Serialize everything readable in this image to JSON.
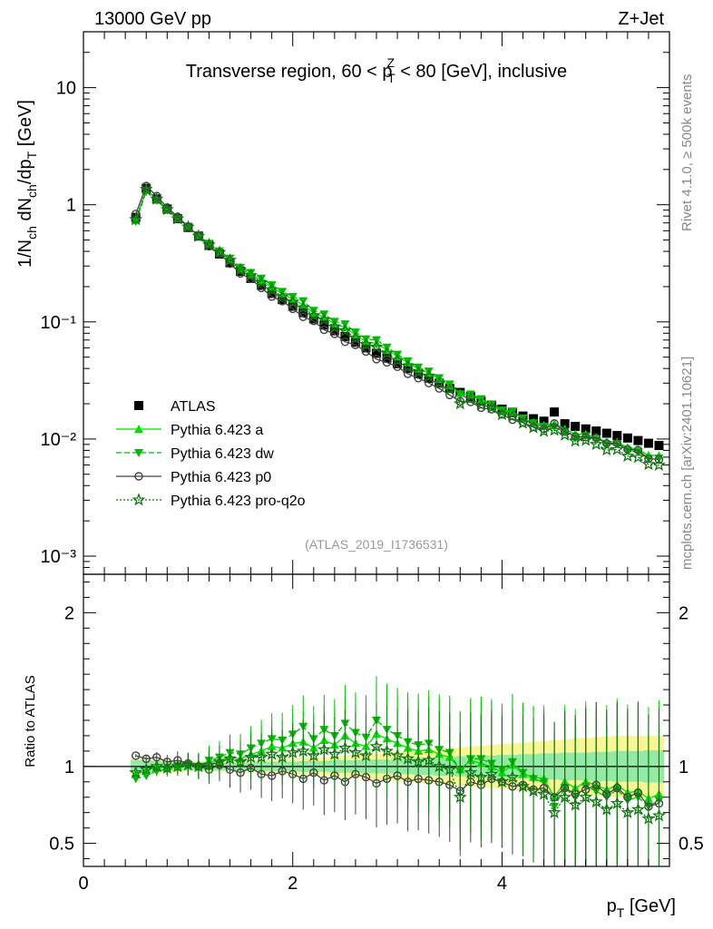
{
  "header": {
    "energy_label": "13000 GeV pp",
    "process_label": "Z+Jet"
  },
  "side_labels": {
    "rivet": "Rivet 4.1.0, ≥ 500k events",
    "source": "mcplots.cern.ch [arXiv:2401.10621]"
  },
  "chart_data": {
    "type": "scatter",
    "title_parts": {
      "pre": "Transverse region, 60 < p",
      "sub": "T",
      "sup": "Z",
      "post": " < 80 [GeV], inclusive"
    },
    "ylabel": "1/N_ch dN_ch/dp_T [GeV]",
    "ylabel_parts": {
      "a": "1/N",
      "a_sub": "ch",
      "b": " dN",
      "b_sub": "ch",
      "c": "/dp",
      "c_sub": "T",
      "d": " [GeV]"
    },
    "xlabel_parts": {
      "a": "p",
      "a_sub": "T",
      "b": " [GeV]"
    },
    "ratio_ylabel": "Ratio to ATLAS",
    "analysis_id": "(ATLAS_2019_I1736531)",
    "xlim": [
      0,
      5.6
    ],
    "ylim": [
      0.0007,
      30
    ],
    "ratio_ylim": [
      0.35,
      2.25
    ],
    "x_ticks": [
      "0",
      "2",
      "4"
    ],
    "y_ticks": [
      "10⁻³",
      "10⁻²",
      "10⁻¹",
      "1",
      "10"
    ],
    "ratio_ticks": [
      "0.5",
      "1",
      "2"
    ],
    "legend_position": "lower-left",
    "x": [
      0.5,
      0.6,
      0.7,
      0.8,
      0.9,
      1.0,
      1.1,
      1.2,
      1.3,
      1.4,
      1.5,
      1.6,
      1.7,
      1.8,
      1.9,
      2.0,
      2.1,
      2.2,
      2.3,
      2.4,
      2.5,
      2.6,
      2.7,
      2.8,
      2.9,
      3.0,
      3.1,
      3.2,
      3.3,
      3.4,
      3.5,
      3.6,
      3.7,
      3.8,
      3.9,
      4.0,
      4.1,
      4.2,
      4.3,
      4.4,
      4.5,
      4.6,
      4.7,
      4.8,
      4.9,
      5.0,
      5.1,
      5.2,
      5.3,
      5.4,
      5.5
    ],
    "data_values": [
      0.78,
      1.38,
      1.12,
      0.92,
      0.76,
      0.64,
      0.54,
      0.45,
      0.38,
      0.32,
      0.27,
      0.235,
      0.205,
      0.175,
      0.155,
      0.136,
      0.12,
      0.106,
      0.094,
      0.084,
      0.075,
      0.067,
      0.06,
      0.054,
      0.049,
      0.044,
      0.04,
      0.036,
      0.033,
      0.03,
      0.027,
      0.025,
      0.023,
      0.021,
      0.0195,
      0.018,
      0.0168,
      0.0157,
      0.0149,
      0.0142,
      0.017,
      0.0135,
      0.0128,
      0.0122,
      0.0117,
      0.0112,
      0.0107,
      0.0102,
      0.0097,
      0.0092,
      0.0088
    ],
    "band_inner_half": [
      0.04,
      0.04,
      0.035,
      0.03,
      0.03,
      0.025,
      0.025,
      0.025,
      0.025,
      0.025,
      0.025,
      0.025,
      0.03,
      0.03,
      0.03,
      0.03,
      0.035,
      0.035,
      0.035,
      0.04,
      0.04,
      0.04,
      0.045,
      0.045,
      0.045,
      0.05,
      0.05,
      0.055,
      0.055,
      0.06,
      0.06,
      0.065,
      0.065,
      0.07,
      0.07,
      0.075,
      0.075,
      0.08,
      0.08,
      0.085,
      0.085,
      0.09,
      0.09,
      0.09,
      0.095,
      0.095,
      0.1,
      0.1,
      0.1,
      0.105,
      0.105
    ],
    "band_outer_half": [
      0.05,
      0.05,
      0.045,
      0.04,
      0.04,
      0.035,
      0.035,
      0.035,
      0.035,
      0.035,
      0.04,
      0.04,
      0.045,
      0.045,
      0.05,
      0.05,
      0.055,
      0.06,
      0.06,
      0.065,
      0.07,
      0.075,
      0.08,
      0.085,
      0.09,
      0.095,
      0.1,
      0.105,
      0.11,
      0.115,
      0.12,
      0.125,
      0.13,
      0.135,
      0.14,
      0.145,
      0.15,
      0.155,
      0.16,
      0.165,
      0.17,
      0.175,
      0.18,
      0.185,
      0.19,
      0.195,
      0.2,
      0.2,
      0.2,
      0.2,
      0.2
    ],
    "series": [
      {
        "name": "ATLAS",
        "key": "atlas"
      },
      {
        "name": "Pythia 6.423 a",
        "key": "a",
        "ratio": [
          0.95,
          0.97,
          1.0,
          1.0,
          1.01,
          1.02,
          1.01,
          1.03,
          1.04,
          1.06,
          1.05,
          1.08,
          1.1,
          1.13,
          1.12,
          1.15,
          1.16,
          1.12,
          1.17,
          1.14,
          1.2,
          1.15,
          1.13,
          1.21,
          1.18,
          1.15,
          1.12,
          1.1,
          1.11,
          1.08,
          1.06,
          0.98,
          1.04,
          1.02,
          1.0,
          0.96,
          1.01,
          0.95,
          0.93,
          0.92,
          0.8,
          0.9,
          0.86,
          0.9,
          0.88,
          0.85,
          0.88,
          0.83,
          0.84,
          0.79,
          0.82
        ]
      },
      {
        "name": "Pythia 6.423 dw",
        "key": "dw",
        "ratio": [
          0.92,
          0.94,
          0.97,
          0.98,
          1.0,
          1.01,
          1.0,
          1.04,
          1.06,
          1.09,
          1.08,
          1.12,
          1.15,
          1.18,
          1.17,
          1.21,
          1.26,
          1.18,
          1.24,
          1.2,
          1.28,
          1.22,
          1.19,
          1.3,
          1.24,
          1.2,
          1.16,
          1.14,
          1.15,
          1.11,
          1.09,
          0.97,
          1.05,
          1.05,
          1.02,
          0.98,
          1.03,
          0.96,
          0.92,
          0.9,
          0.74,
          0.86,
          0.8,
          0.87,
          0.84,
          0.8,
          0.85,
          0.78,
          0.8,
          0.74,
          0.78
        ]
      },
      {
        "name": "Pythia 6.423 p0",
        "key": "p0",
        "ratio": [
          1.07,
          1.05,
          1.06,
          1.03,
          1.04,
          1.02,
          1.0,
          0.98,
          1.01,
          0.98,
          0.96,
          0.99,
          0.95,
          0.94,
          0.97,
          0.95,
          0.92,
          0.96,
          0.91,
          0.94,
          0.9,
          0.95,
          0.93,
          0.89,
          0.92,
          0.94,
          0.9,
          0.92,
          0.91,
          0.9,
          0.88,
          0.84,
          0.9,
          0.88,
          0.92,
          0.9,
          0.87,
          0.88,
          0.85,
          0.86,
          0.8,
          0.86,
          0.82,
          0.85,
          0.88,
          0.82,
          0.86,
          0.8,
          0.83,
          0.74,
          0.76
        ]
      },
      {
        "name": "Pythia 6.423 pro-q2o",
        "key": "proq2o",
        "ratio": [
          0.96,
          0.98,
          1.0,
          0.99,
          1.0,
          1.01,
          1.0,
          1.01,
          1.03,
          1.05,
          1.03,
          1.06,
          1.06,
          1.08,
          1.06,
          1.09,
          1.1,
          1.07,
          1.11,
          1.08,
          1.12,
          1.09,
          1.07,
          1.13,
          1.1,
          1.07,
          1.05,
          1.03,
          1.04,
          1.0,
          0.98,
          0.8,
          0.96,
          0.93,
          0.95,
          0.9,
          0.93,
          0.87,
          0.84,
          0.82,
          0.7,
          0.8,
          0.75,
          0.8,
          0.77,
          0.72,
          0.76,
          0.7,
          0.72,
          0.66,
          0.68
        ]
      }
    ]
  }
}
